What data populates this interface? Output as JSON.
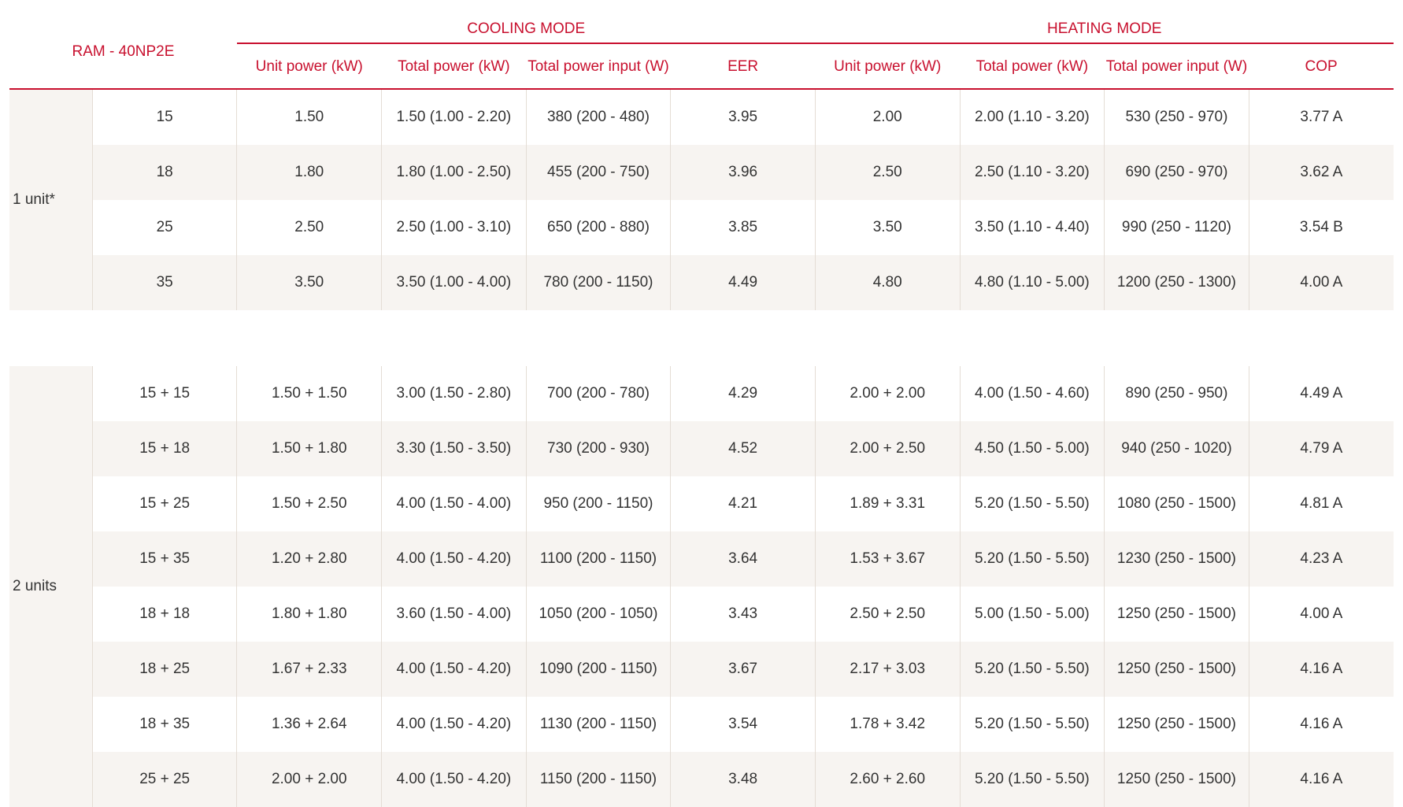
{
  "header": {
    "model": "RAM - 40NP2E",
    "cooling_mode": "COOLING MODE",
    "heating_mode": "HEATING MODE",
    "columns": {
      "unit_power_c": "Unit power (kW)",
      "total_power_c": "Total power (kW)",
      "total_input_c": "Total power input (W)",
      "eer": "EER",
      "unit_power_h": "Unit power (kW)",
      "total_power_h": "Total power (kW)",
      "total_input_h": "Total power input (W)",
      "cop": "COP"
    }
  },
  "groups": [
    {
      "label": "1 unit*",
      "rows": [
        [
          "15",
          "1.50",
          "1.50 (1.00 - 2.20)",
          "380 (200 - 480)",
          "3.95",
          "2.00",
          "2.00 (1.10 - 3.20)",
          "530 (250 - 970)",
          "3.77 A"
        ],
        [
          "18",
          "1.80",
          "1.80 (1.00 - 2.50)",
          "455 (200 - 750)",
          "3.96",
          "2.50",
          "2.50 (1.10 - 3.20)",
          "690 (250 - 970)",
          "3.62 A"
        ],
        [
          "25",
          "2.50",
          "2.50 (1.00 - 3.10)",
          "650 (200 - 880)",
          "3.85",
          "3.50",
          "3.50 (1.10 - 4.40)",
          "990 (250 - 1120)",
          "3.54 B"
        ],
        [
          "35",
          "3.50",
          "3.50 (1.00 - 4.00)",
          "780 (200 - 1150)",
          "4.49",
          "4.80",
          "4.80 (1.10 - 5.00)",
          "1200 (250 - 1300)",
          "4.00 A"
        ]
      ]
    },
    {
      "label": "2 units",
      "rows": [
        [
          "15 + 15",
          "1.50 + 1.50",
          "3.00 (1.50 - 2.80)",
          "700 (200 - 780)",
          "4.29",
          "2.00 + 2.00",
          "4.00 (1.50 - 4.60)",
          "890 (250 - 950)",
          "4.49 A"
        ],
        [
          "15 + 18",
          "1.50 + 1.80",
          "3.30 (1.50 - 3.50)",
          "730 (200 - 930)",
          "4.52",
          "2.00 + 2.50",
          "4.50 (1.50 - 5.00)",
          "940 (250 - 1020)",
          "4.79 A"
        ],
        [
          "15 + 25",
          "1.50 + 2.50",
          "4.00 (1.50 - 4.00)",
          "950 (200 - 1150)",
          "4.21",
          "1.89 + 3.31",
          "5.20 (1.50 - 5.50)",
          "1080 (250 - 1500)",
          "4.81 A"
        ],
        [
          "15 + 35",
          "1.20 + 2.80",
          "4.00 (1.50 - 4.20)",
          "1100 (200 - 1150)",
          "3.64",
          "1.53 + 3.67",
          "5.20 (1.50 - 5.50)",
          "1230 (250 - 1500)",
          "4.23 A"
        ],
        [
          "18 + 18",
          "1.80 + 1.80",
          "3.60 (1.50 - 4.00)",
          "1050 (200 - 1050)",
          "3.43",
          "2.50 + 2.50",
          "5.00 (1.50 - 5.00)",
          "1250 (250 - 1500)",
          "4.00 A"
        ],
        [
          "18 + 25",
          "1.67 + 2.33",
          "4.00 (1.50 - 4.20)",
          "1090 (200 - 1150)",
          "3.67",
          "2.17 + 3.03",
          "5.20 (1.50 - 5.50)",
          "1250 (250 - 1500)",
          "4.16 A"
        ],
        [
          "18 + 35",
          "1.36 + 2.64",
          "4.00 (1.50 - 4.20)",
          "1130 (200 - 1150)",
          "3.54",
          "1.78 + 3.42",
          "5.20 (1.50 - 5.50)",
          "1250 (250 - 1500)",
          "4.16 A"
        ],
        [
          "25 + 25",
          "2.00 + 2.00",
          "4.00 (1.50 - 4.20)",
          "1150 (200 - 1150)",
          "3.48",
          "2.60 + 2.60",
          "5.20 (1.50 - 5.50)",
          "1250 (250 - 1500)",
          "4.16 A"
        ]
      ]
    }
  ]
}
